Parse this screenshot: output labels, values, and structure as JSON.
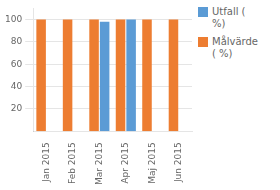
{
  "chart_data": {
    "type": "bar",
    "categories": [
      "Jan 2015",
      "Feb 2015",
      "Mar 2015",
      "Apr 2015",
      "Maj 2015",
      "Jun 2015"
    ],
    "series": [
      {
        "name": "Målvärde\n( %)",
        "color": "#ED7D31",
        "values": [
          100,
          100,
          100,
          100,
          100,
          100
        ]
      },
      {
        "name": "Utfall (\n%)",
        "color": "#5B9BD5",
        "values": [
          0,
          0,
          98,
          100,
          0,
          0
        ]
      }
    ],
    "ylim": [
      0,
      110
    ],
    "yticks": [
      20,
      40,
      60,
      80,
      100
    ],
    "grid": true,
    "legend": "upper right"
  }
}
